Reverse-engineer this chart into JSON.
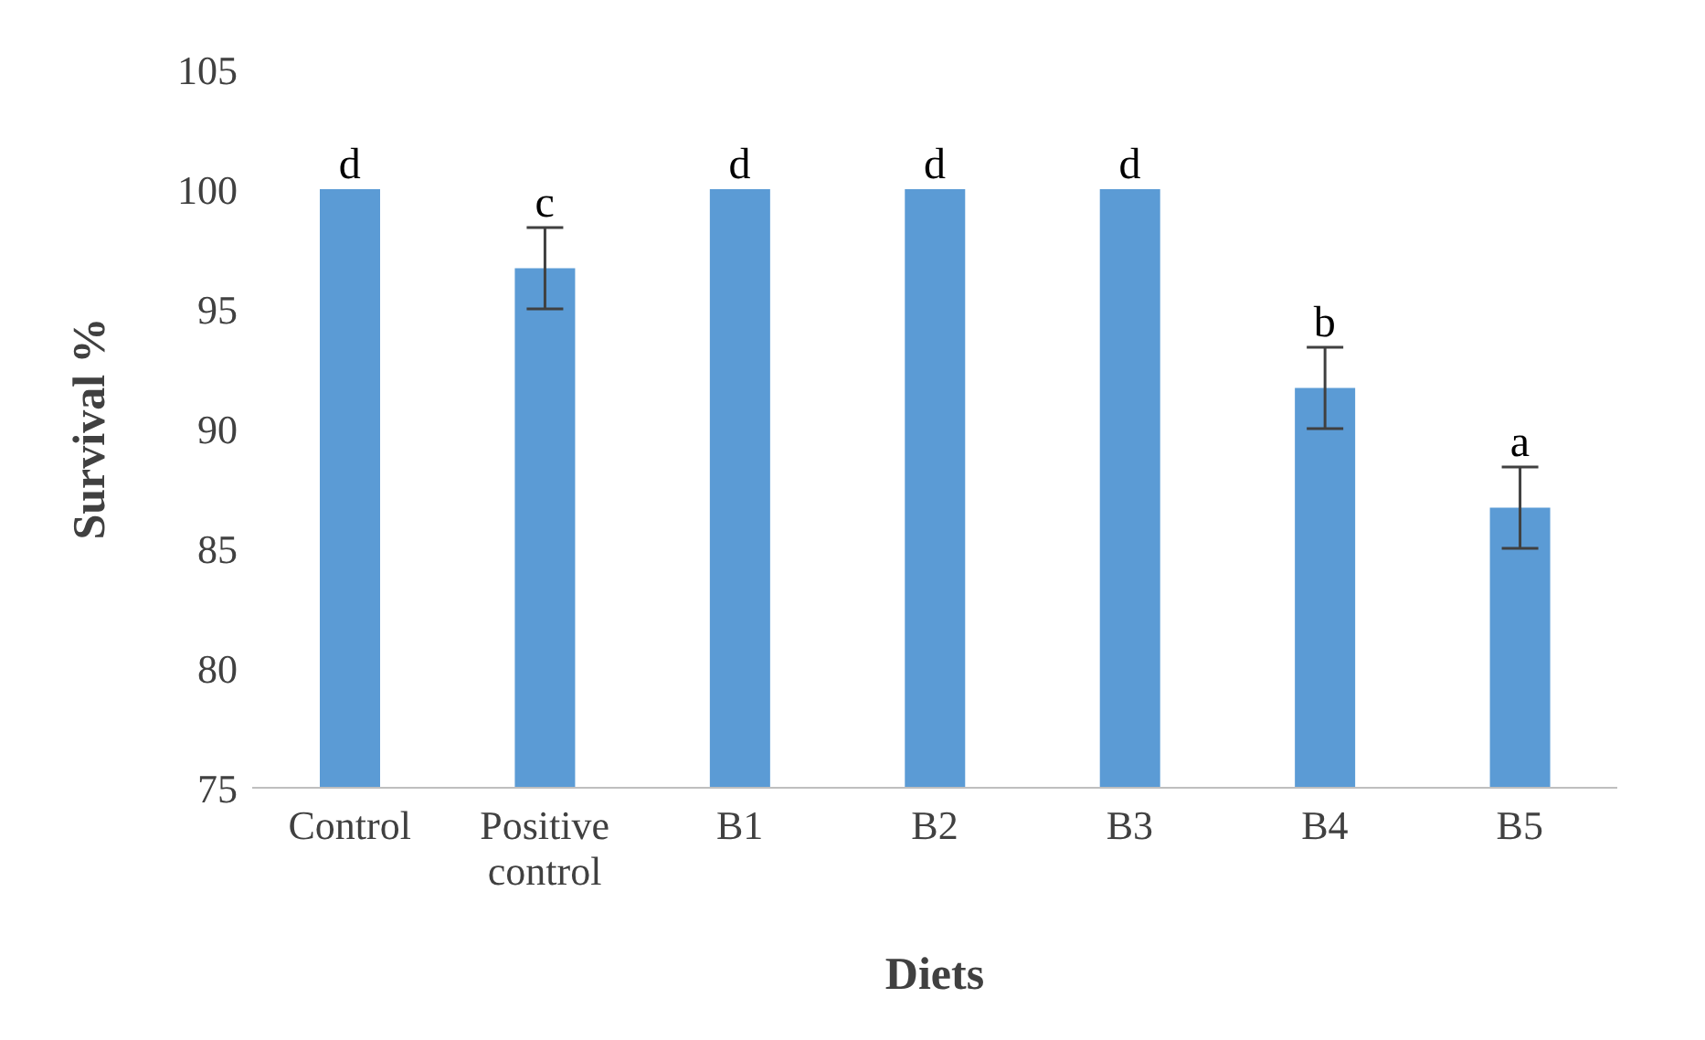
{
  "chart_data": {
    "type": "bar",
    "xlabel": "Diets",
    "ylabel": "Survival %",
    "categories": [
      "Control",
      "Positive control",
      "B1",
      "B2",
      "B3",
      "B4",
      "B5"
    ],
    "values": [
      100,
      96.7,
      100,
      100,
      100,
      91.7,
      86.7
    ],
    "errors": [
      null,
      1.7,
      null,
      null,
      null,
      1.7,
      1.7
    ],
    "color": "#5b9bd5",
    "ylim": [
      75,
      105
    ],
    "yticks": [
      75,
      80,
      85,
      90,
      95,
      100,
      105
    ],
    "grid": false,
    "legend": false,
    "annotations": [
      {
        "text": "d",
        "x": "Control",
        "y": 100
      },
      {
        "text": "c",
        "x": "Positive control",
        "y": 98.4
      },
      {
        "text": "d",
        "x": "B1",
        "y": 100
      },
      {
        "text": "d",
        "x": "B2",
        "y": 100
      },
      {
        "text": "d",
        "x": "B3",
        "y": 100
      },
      {
        "text": "b",
        "x": "B4",
        "y": 93.4
      },
      {
        "text": "a",
        "x": "B5",
        "y": 88.4
      }
    ]
  }
}
